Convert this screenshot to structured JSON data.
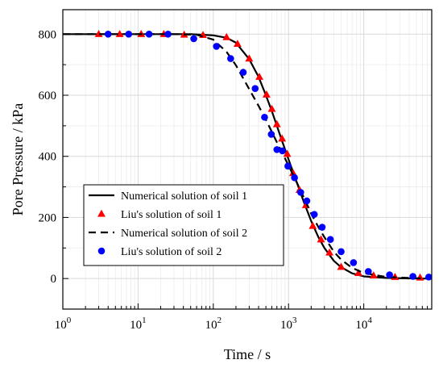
{
  "chart_data": {
    "type": "line",
    "xlabel": "Time / s",
    "ylabel": "Pore Pressure / kPa",
    "x_scale": "log",
    "xlim": [
      1,
      80000
    ],
    "ylim": [
      -100,
      880
    ],
    "x_ticks": [
      {
        "value": 1,
        "base": "10",
        "exp": "0"
      },
      {
        "value": 10,
        "base": "10",
        "exp": "1"
      },
      {
        "value": 100,
        "base": "10",
        "exp": "2"
      },
      {
        "value": 1000,
        "base": "10",
        "exp": "3"
      },
      {
        "value": 10000,
        "base": "10",
        "exp": "4"
      }
    ],
    "y_ticks": [
      0,
      200,
      400,
      600,
      800
    ],
    "grid": true,
    "legend_position": "lower-left",
    "series": [
      {
        "name": "Numerical solution of soil 1",
        "style": "solid-line",
        "color": "#000000",
        "x": [
          1,
          10,
          50,
          100,
          150,
          200,
          300,
          400,
          500,
          600,
          700,
          800,
          1000,
          1300,
          1600,
          2000,
          2500,
          3000,
          4000,
          5000,
          7000,
          10000,
          20000,
          50000,
          80000
        ],
        "y": [
          800,
          800,
          800,
          796,
          788,
          772,
          718,
          660,
          600,
          548,
          500,
          458,
          390,
          312,
          250,
          188,
          135,
          100,
          58,
          37,
          17,
          7,
          2,
          0,
          0
        ]
      },
      {
        "name": "Liu's solution of soil 1",
        "style": "triangle-marker",
        "color": "#ff0000",
        "x": [
          3,
          5.7,
          11,
          22,
          41,
          73,
          150,
          210,
          300,
          410,
          510,
          600,
          700,
          820,
          960,
          1150,
          1400,
          1700,
          2100,
          2700,
          3500,
          5000,
          8500,
          13500,
          26000,
          56000
        ],
        "y": [
          800,
          800,
          800,
          800,
          798,
          797,
          790,
          768,
          720,
          660,
          602,
          555,
          505,
          458,
          408,
          345,
          290,
          240,
          172,
          128,
          85,
          38,
          18,
          10,
          5,
          3
        ]
      },
      {
        "name": "Numerical solution of soil 2",
        "style": "dashed-line",
        "color": "#000000",
        "x": [
          1,
          10,
          30,
          60,
          100,
          150,
          200,
          300,
          400,
          500,
          600,
          700,
          800,
          1000,
          1300,
          1600,
          2000,
          2500,
          3000,
          4000,
          5000,
          7000,
          10000,
          20000,
          50000,
          80000
        ],
        "y": [
          800,
          800,
          800,
          798,
          782,
          742,
          698,
          620,
          565,
          520,
          480,
          446,
          418,
          370,
          312,
          265,
          212,
          168,
          135,
          88,
          62,
          35,
          18,
          5,
          1,
          0
        ]
      },
      {
        "name": "Liu's solution of soil 2",
        "style": "circle-marker",
        "color": "#0000ff",
        "x": [
          4,
          7.5,
          14,
          25,
          55,
          110,
          170,
          250,
          360,
          480,
          590,
          700,
          830,
          980,
          1200,
          1450,
          1750,
          2200,
          2800,
          3600,
          5000,
          7300,
          11500,
          22000,
          45000,
          73000
        ],
        "y": [
          800,
          800,
          800,
          800,
          785,
          760,
          720,
          675,
          622,
          528,
          472,
          422,
          418,
          368,
          330,
          282,
          254,
          210,
          168,
          128,
          88,
          52,
          23,
          12,
          7,
          5
        ]
      }
    ]
  }
}
